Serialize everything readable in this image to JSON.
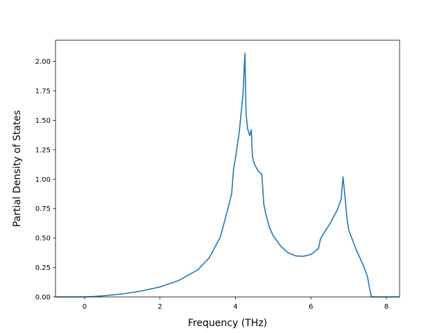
{
  "chart_data": {
    "type": "line",
    "title": "",
    "xlabel": "Frequency (THz)",
    "ylabel": "Partial Density of States",
    "xlim": [
      -0.77,
      8.35
    ],
    "ylim": [
      0.0,
      2.18
    ],
    "xticks": [
      0,
      2,
      4,
      6,
      8
    ],
    "xtick_labels": [
      "0",
      "2",
      "4",
      "6",
      "8"
    ],
    "yticks": [
      0.0,
      0.25,
      0.5,
      0.75,
      1.0,
      1.25,
      1.5,
      1.75,
      2.0
    ],
    "ytick_labels": [
      "0.00",
      "0.25",
      "0.50",
      "0.75",
      "1.00",
      "1.25",
      "1.50",
      "1.75",
      "2.00"
    ],
    "grid": false,
    "legend": "none",
    "series_color": "#1f77b4",
    "series": [
      {
        "x": [
          -0.77,
          0.0,
          0.2,
          0.5,
          1.0,
          1.5,
          2.0,
          2.5,
          3.0,
          3.3,
          3.6,
          3.8,
          3.9,
          3.95,
          4.0,
          4.1,
          4.2,
          4.25,
          4.28,
          4.32,
          4.38,
          4.42,
          4.45,
          4.5,
          4.6,
          4.7,
          4.75,
          4.8,
          4.9,
          5.0,
          5.2,
          5.4,
          5.6,
          5.8,
          6.0,
          6.2,
          6.25,
          6.3,
          6.4,
          6.5,
          6.6,
          6.7,
          6.8,
          6.85,
          6.9,
          6.95,
          7.0,
          7.2,
          7.4,
          7.5,
          7.55,
          7.6,
          8.35
        ],
        "y": [
          0.0,
          0.0,
          0.003,
          0.01,
          0.025,
          0.05,
          0.085,
          0.14,
          0.23,
          0.33,
          0.51,
          0.75,
          0.88,
          1.09,
          1.18,
          1.4,
          1.72,
          2.07,
          1.56,
          1.43,
          1.37,
          1.42,
          1.19,
          1.13,
          1.07,
          1.04,
          0.79,
          0.71,
          0.59,
          0.52,
          0.43,
          0.375,
          0.348,
          0.345,
          0.36,
          0.41,
          0.49,
          0.52,
          0.57,
          0.62,
          0.68,
          0.74,
          0.83,
          1.02,
          0.86,
          0.68,
          0.57,
          0.4,
          0.26,
          0.17,
          0.08,
          0.0,
          0.0
        ]
      }
    ]
  }
}
